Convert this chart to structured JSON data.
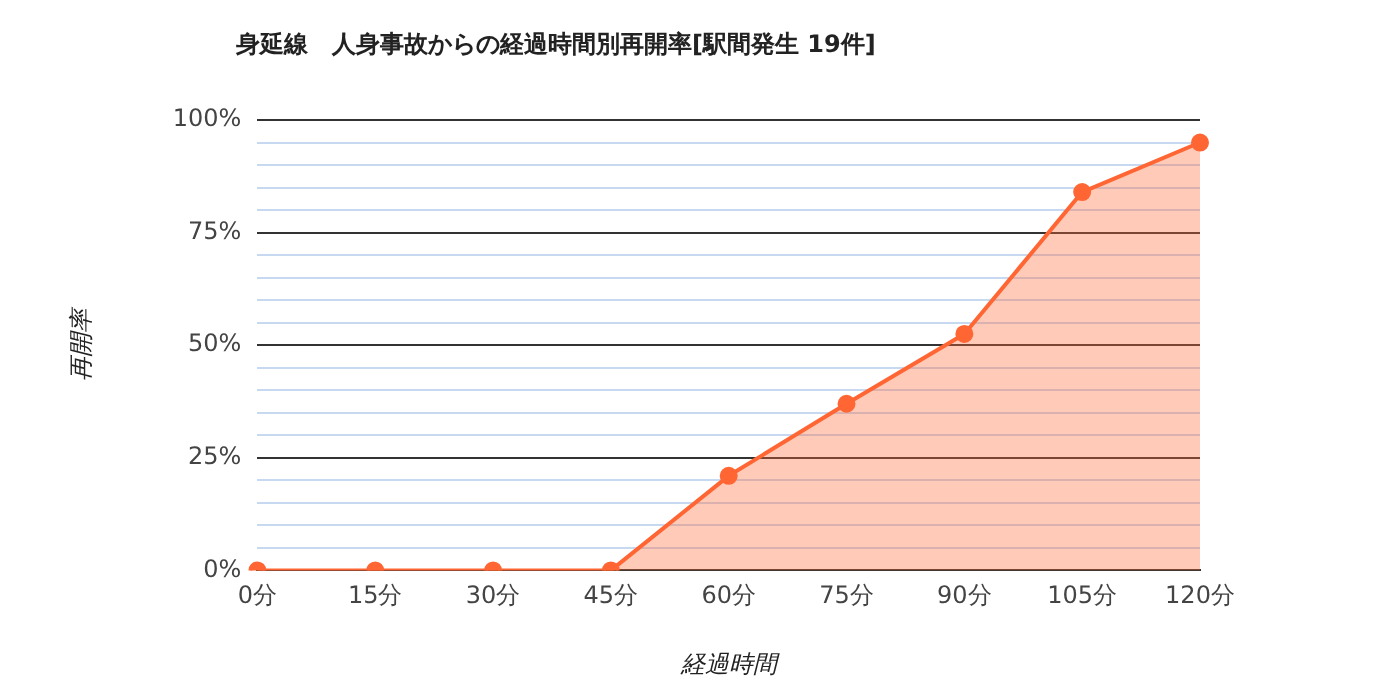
{
  "chart_data": {
    "type": "area",
    "title": "身延線　人身事故からの経過時間別再開率[駅間発生 19件]",
    "xlabel": "経過時間",
    "ylabel": "再開率",
    "categories": [
      "0分",
      "15分",
      "30分",
      "45分",
      "60分",
      "75分",
      "90分",
      "105分",
      "120分"
    ],
    "series": [
      {
        "color": "#ff6633",
        "values": [
          0,
          0,
          0,
          0,
          21,
          37,
          52.5,
          84,
          95
        ]
      }
    ],
    "ylim": [
      0,
      100
    ],
    "yticks": [
      {
        "value": 0,
        "label": "0%"
      },
      {
        "value": 5,
        "label": null
      },
      {
        "value": 10,
        "label": null
      },
      {
        "value": 15,
        "label": null
      },
      {
        "value": 20,
        "label": null
      },
      {
        "value": 25,
        "label": "25%"
      },
      {
        "value": 30,
        "label": null
      },
      {
        "value": 35,
        "label": null
      },
      {
        "value": 40,
        "label": null
      },
      {
        "value": 45,
        "label": null
      },
      {
        "value": 50,
        "label": "50%"
      },
      {
        "value": 55,
        "label": null
      },
      {
        "value": 60,
        "label": null
      },
      {
        "value": 65,
        "label": null
      },
      {
        "value": 70,
        "label": null
      },
      {
        "value": 75,
        "label": "75%"
      },
      {
        "value": 80,
        "label": null
      },
      {
        "value": 85,
        "label": null
      },
      {
        "value": 90,
        "label": null
      },
      {
        "value": 95,
        "label": null
      },
      {
        "value": 100,
        "label": "100%"
      }
    ],
    "grid": "y",
    "legend": false,
    "marker": "circle",
    "line_style": "solid"
  }
}
